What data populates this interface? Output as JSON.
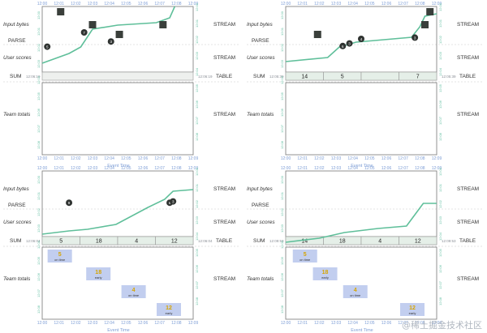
{
  "rows": {
    "input_bytes": "Input bytes",
    "parse": "PARSE",
    "user_scores": "User scores",
    "sum": "SUM",
    "team_totals": "Team totals"
  },
  "tags": {
    "stream": "STREAM",
    "table": "TABLE"
  },
  "xlabel": "Event Time",
  "times": [
    "12:00",
    "12:01",
    "12:02",
    "12:03",
    "12:04",
    "12:05",
    "12:06",
    "12:07",
    "12:08",
    "12:09"
  ],
  "panels": [
    {
      "id": "top-left",
      "sum_left": "12:06:19",
      "sum_right": "12:06:19",
      "window_values": [],
      "score_markers": [
        {
          "t": 0.3,
          "v": "5"
        },
        {
          "t": 2.5,
          "v": "7"
        },
        {
          "t": 4.1,
          "v": "3"
        }
      ],
      "squares": [
        {
          "t": 1.1,
          "y": 0
        },
        {
          "t": 3.0,
          "y": 1
        },
        {
          "t": 4.6,
          "y": 2
        },
        {
          "t": 7.2,
          "y": 1
        }
      ],
      "team_results": [],
      "watermark_curve": [
        [
          0,
          70
        ],
        [
          1.6,
          58
        ],
        [
          2.3,
          50
        ],
        [
          3.0,
          28
        ],
        [
          4.5,
          23
        ],
        [
          6.8,
          20
        ],
        [
          7.6,
          14
        ],
        [
          7.9,
          0
        ]
      ]
    },
    {
      "id": "top-right",
      "sum_left": "12:05:39",
      "sum_right": "12:05:39",
      "window_values": [
        "14",
        "5",
        "",
        "7"
      ],
      "score_markers": [
        {
          "t": 3.4,
          "v": "6"
        },
        {
          "t": 4.5,
          "v": "4"
        },
        {
          "t": 3.8,
          "v": "3"
        },
        {
          "t": 7.7,
          "v": "3"
        }
      ],
      "squares": [
        {
          "t": 1.9,
          "y": 2
        },
        {
          "t": 8.3,
          "y": 1
        },
        {
          "t": 8.6,
          "y": 0
        }
      ],
      "team_results": [],
      "watermark_curve": [
        [
          0,
          68
        ],
        [
          2.5,
          63
        ],
        [
          3.2,
          50
        ],
        [
          4.2,
          44
        ],
        [
          7.5,
          38
        ],
        [
          8.0,
          25
        ],
        [
          8.3,
          12
        ],
        [
          9.0,
          9
        ]
      ]
    },
    {
      "id": "bottom-left",
      "sum_left": "12:06:04",
      "sum_right": "12:06:04",
      "window_values": [
        "5",
        "18",
        "4",
        "12"
      ],
      "score_markers": [
        {
          "t": 1.6,
          "v": "9"
        },
        {
          "t": 7.6,
          "v": "8"
        },
        {
          "t": 7.8,
          "v": "3"
        }
      ],
      "squares": [],
      "team_results": [
        {
          "t": 1.0,
          "v": "5",
          "note": "on time"
        },
        {
          "t": 3.3,
          "v": "18",
          "note": "early"
        },
        {
          "t": 5.4,
          "v": "4",
          "note": "on time"
        },
        {
          "t": 7.5,
          "v": "12",
          "note": "early"
        }
      ],
      "watermark_curve": [
        [
          0,
          78
        ],
        [
          1.6,
          74
        ],
        [
          2.7,
          72
        ],
        [
          4.4,
          66
        ],
        [
          6.3,
          45
        ],
        [
          7.3,
          35
        ],
        [
          7.8,
          25
        ],
        [
          9.0,
          23
        ]
      ]
    },
    {
      "id": "bottom-right",
      "sum_left": "12:09:53",
      "sum_right": "12:09:53",
      "window_values": [
        "14",
        "18",
        "4",
        "12"
      ],
      "score_markers": [],
      "squares": [],
      "team_results": [
        {
          "t": 1.1,
          "v": "5",
          "note": "on time"
        },
        {
          "t": 2.3,
          "v": "18",
          "note": "early"
        },
        {
          "t": 4.1,
          "v": "4",
          "note": "on time"
        },
        {
          "t": 7.5,
          "v": "12",
          "note": "early"
        }
      ],
      "watermark_curve": [
        [
          0,
          88
        ],
        [
          2.0,
          83
        ],
        [
          3.5,
          76
        ],
        [
          5.5,
          71
        ],
        [
          7.2,
          68
        ],
        [
          8.2,
          40
        ],
        [
          9.0,
          40
        ]
      ]
    }
  ],
  "watermark_text": "@稀土掘金技术社区"
}
